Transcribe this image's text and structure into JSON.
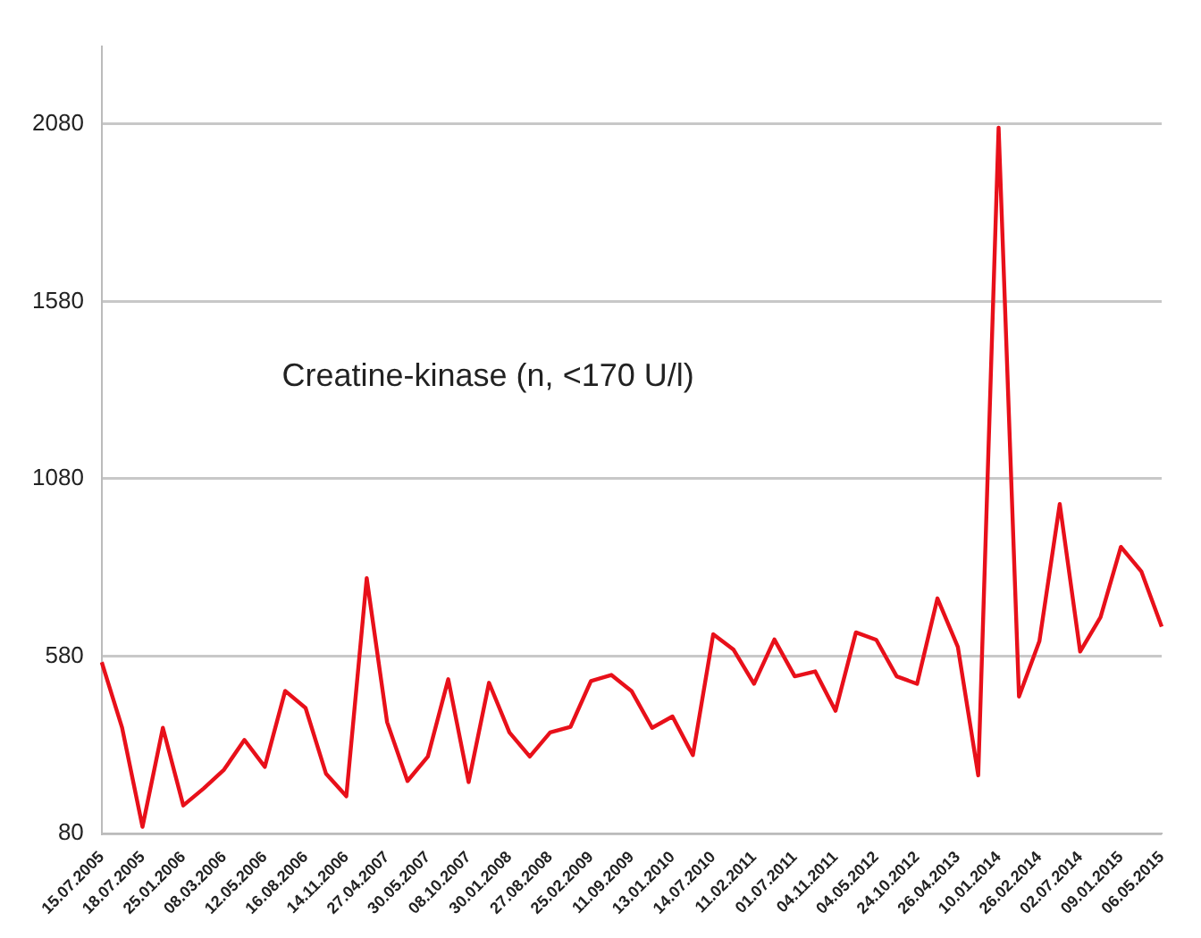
{
  "chart_data": {
    "type": "line",
    "categories": [
      "15.07.2005",
      null,
      "18.07.2005",
      null,
      "25.01.2006",
      null,
      "08.03.2006",
      null,
      "12.05.2006",
      null,
      "16.08.2006",
      null,
      "14.11.2006",
      null,
      "27.04.2007",
      null,
      "30.05.2007",
      null,
      "08.10.2007",
      null,
      "30.01.2008",
      null,
      "27.08.2008",
      null,
      "25.02.2009",
      null,
      "11.09.2009",
      null,
      "13.01.2010",
      null,
      "14.07.2010",
      null,
      "11.02.2011",
      null,
      "01.07.2011",
      null,
      "04.11.2011",
      null,
      "04.05.2012",
      null,
      "24.10.2012",
      null,
      "26.04.2013",
      null,
      "10.01.2014",
      null,
      "26.02.2014",
      null,
      "02.07.2014",
      null,
      "09.01.2015",
      null,
      "06.05.2015"
    ],
    "series": [
      {
        "color": "#e8101a",
        "values": [
          563,
          378,
          99,
          378,
          159,
          207,
          260,
          344,
          268,
          482,
          434,
          249,
          185,
          800,
          394,
          228,
          297,
          515,
          225,
          505,
          365,
          297,
          365,
          381,
          510,
          527,
          481,
          378,
          410,
          301,
          642,
          598,
          502,
          627,
          523,
          537,
          426,
          647,
          626,
          523,
          502,
          743,
          606,
          244,
          2070,
          466,
          622,
          1009,
          593,
          690,
          888,
          819,
          663
        ]
      }
    ],
    "annotations": [
      "Creatine-kinase (n, <170 U/l)"
    ],
    "ylim": [
      80,
      2300
    ],
    "yticks": [
      80,
      580,
      1080,
      1580,
      2080
    ],
    "grid": "y",
    "legend": false,
    "marker": "none",
    "line_style": "solid"
  }
}
